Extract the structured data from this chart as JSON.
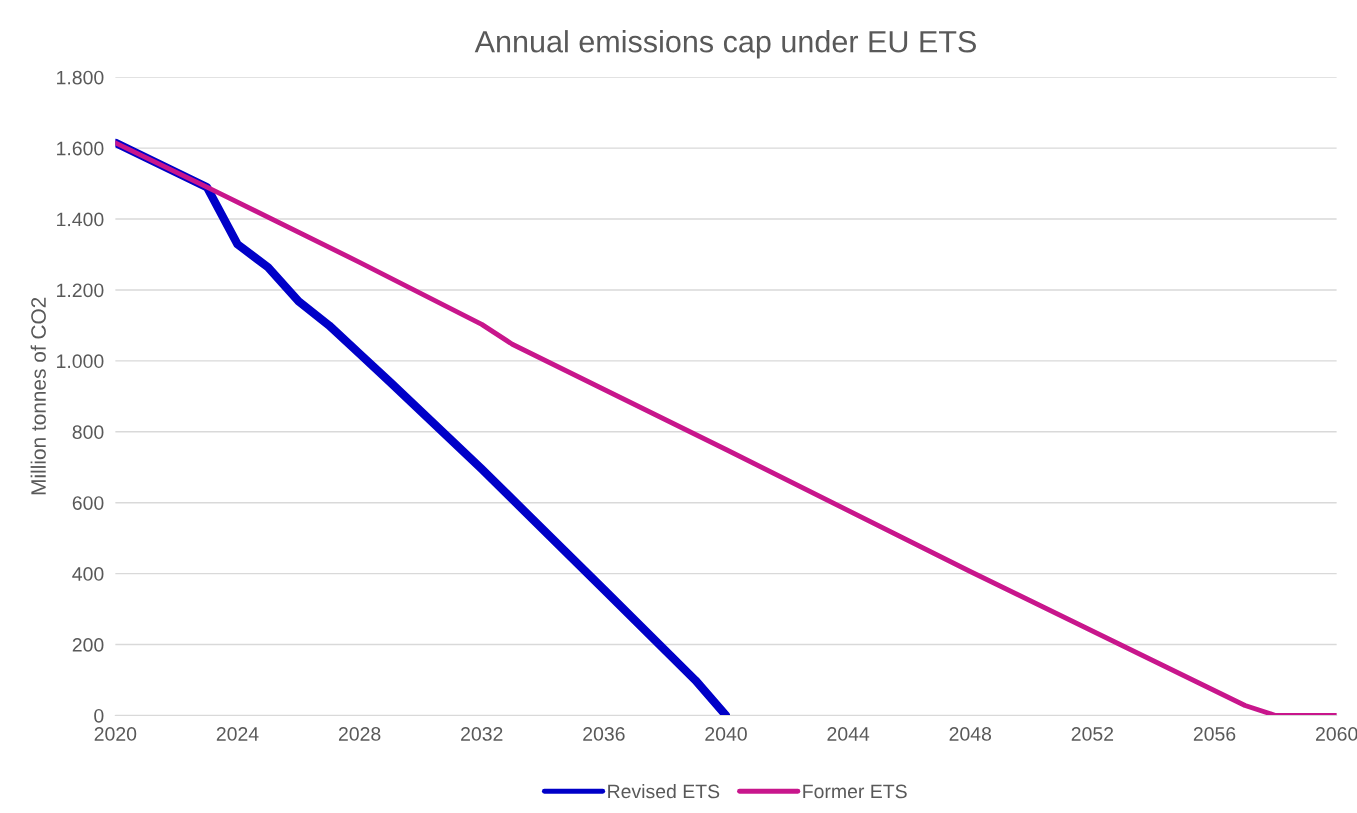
{
  "chart_data": {
    "type": "line",
    "title": "Annual emissions cap under EU ETS",
    "ylabel": "Million tonnes of CO2",
    "xlim": [
      2020,
      2060
    ],
    "xticks": [
      2020,
      2024,
      2028,
      2032,
      2036,
      2040,
      2044,
      2048,
      2052,
      2056,
      2060
    ],
    "ylim": [
      0,
      1800
    ],
    "yticks": [
      0,
      200,
      400,
      600,
      800,
      {
        "value": 1000,
        "label": "1.000"
      },
      {
        "value": 1200,
        "label": "1.200"
      },
      {
        "value": 1400,
        "label": "1.400"
      },
      {
        "value": 1600,
        "label": "1.600"
      },
      {
        "value": 1800,
        "label": "1.800"
      }
    ],
    "grid": "y",
    "legend": "bottom",
    "marker": "none",
    "line_style": "solid",
    "series": [
      {
        "name": "Revised ETS",
        "color": "#0000c8",
        "x": [
          2020,
          2023,
          2024,
          2025,
          2026,
          2027,
          2028,
          2029,
          2032,
          2036,
          2039,
          2040
        ],
        "values": [
          1615,
          1490,
          1329,
          1264,
          1168,
          1100,
          1020,
          940,
          695,
          355,
          99,
          0
        ]
      },
      {
        "name": "Former ETS",
        "color": "#c8168c",
        "x": [
          2020,
          2023,
          2028,
          2032,
          2033,
          2040,
          2048,
          2057,
          2058,
          2060
        ],
        "values": [
          1615,
          1490,
          1278,
          1103,
          1047,
          750,
          406,
          28,
          0,
          0
        ]
      }
    ]
  }
}
